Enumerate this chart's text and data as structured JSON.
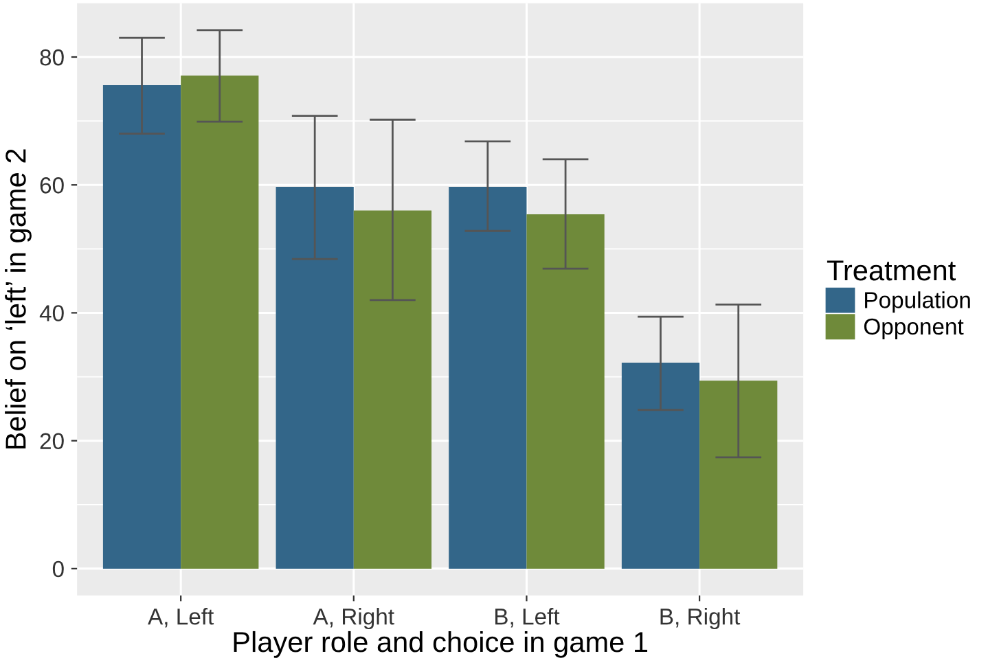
{
  "chart_data": {
    "type": "bar",
    "xlabel": "Player role and choice in game 1",
    "ylabel": "Belief on ‘left’ in game 2",
    "legend_title": "Treatment",
    "legend": "right",
    "categories": [
      "A, Left",
      "A, Right",
      "B, Left",
      "B, Right"
    ],
    "series": [
      {
        "name": "Population",
        "color": "#336689",
        "values": [
          75.6,
          59.7,
          59.7,
          32.2
        ],
        "errors": [
          [
            68.0,
            83.0
          ],
          [
            48.4,
            70.8
          ],
          [
            52.8,
            66.8
          ],
          [
            24.8,
            39.4
          ]
        ]
      },
      {
        "name": "Opponent",
        "color": "#6f8a3a",
        "values": [
          77.1,
          56.0,
          55.4,
          29.4
        ],
        "errors": [
          [
            69.9,
            84.2
          ],
          [
            42.0,
            70.2
          ],
          [
            46.9,
            64.0
          ],
          [
            17.4,
            41.3
          ]
        ]
      }
    ],
    "ylim": [
      -4.2,
      88.4
    ],
    "yticks": [
      0,
      20,
      40,
      60,
      80
    ],
    "grid": true
  }
}
